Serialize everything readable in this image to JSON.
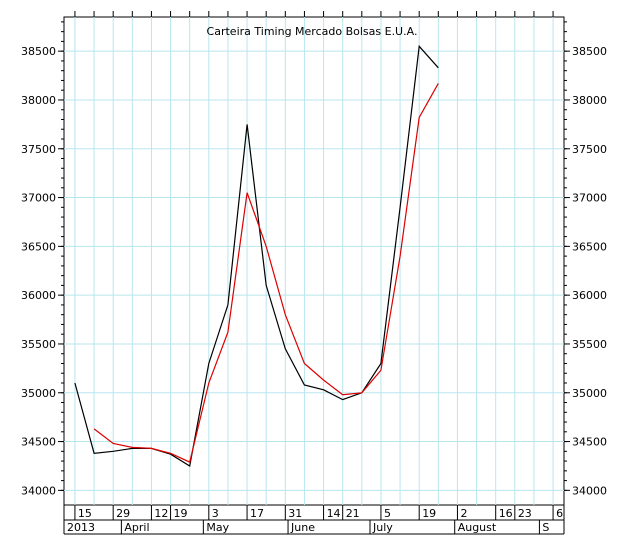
{
  "chart_data": {
    "type": "line",
    "title": "Carteira Timing Mercado Bolsas E.U.A.",
    "xlabel": "",
    "ylabel": "",
    "ylim": [
      33850,
      38850
    ],
    "yticks": [
      34000,
      34500,
      35000,
      35500,
      36000,
      36500,
      37000,
      37500,
      38000,
      38500
    ],
    "grid": true,
    "x": [
      "2013-03-15",
      "2013-03-22",
      "2013-03-29",
      "2013-04-05",
      "2013-04-12",
      "2013-04-19",
      "2013-04-26",
      "2013-05-03",
      "2013-05-10",
      "2013-05-17",
      "2013-05-24",
      "2013-05-31",
      "2013-06-07",
      "2013-06-14",
      "2013-06-21",
      "2013-06-28",
      "2013-07-05",
      "2013-07-12",
      "2013-07-19",
      "2013-07-26"
    ],
    "series": [
      {
        "color": "#000000",
        "values": [
          35100,
          34380,
          34400,
          34430,
          34430,
          34370,
          34250,
          35300,
          35900,
          37750,
          36100,
          35450,
          35080,
          35030,
          34930,
          35000,
          35300,
          36900,
          38550,
          38330
        ]
      },
      {
        "color": "#dd0000",
        "values": [
          null,
          34630,
          34480,
          34440,
          34430,
          34380,
          34290,
          35100,
          35620,
          37050,
          36500,
          35800,
          35300,
          35130,
          34980,
          35000,
          35230,
          36400,
          37820,
          38170
        ]
      }
    ],
    "x_ticks_row1": [
      "15",
      "29",
      "12",
      "19",
      "3",
      "17",
      "31",
      "14",
      "21",
      "5",
      "19",
      "2",
      "16",
      "23",
      "6"
    ],
    "x_ticks_row2": [
      "2013",
      "April",
      "May",
      "June",
      "July",
      "August",
      "S"
    ]
  }
}
